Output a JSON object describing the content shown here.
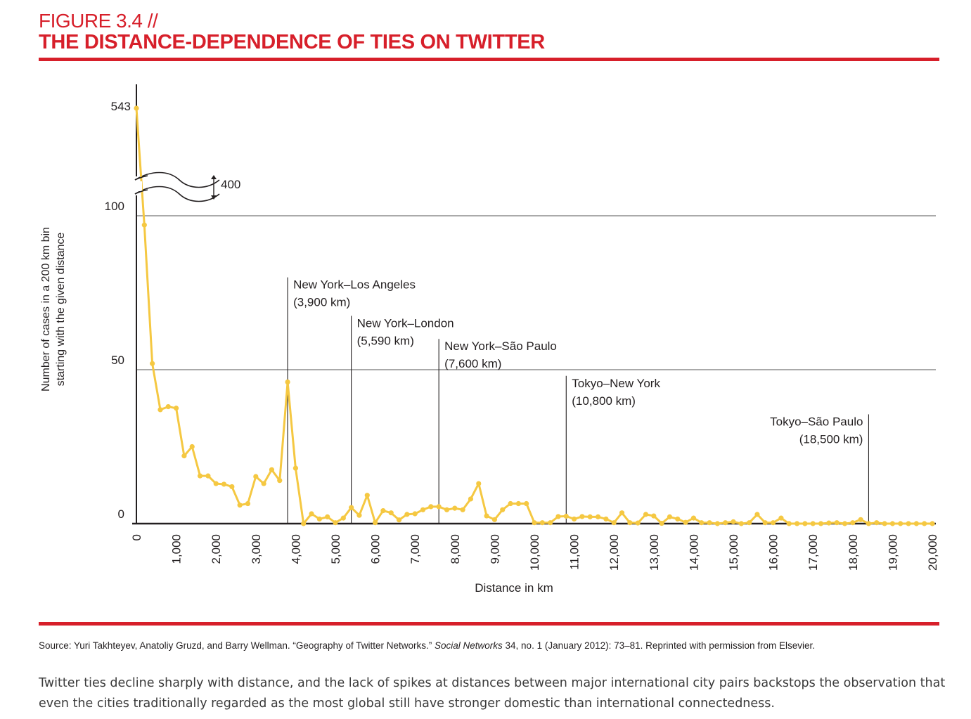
{
  "figure": {
    "label": "FIGURE 3.4 //",
    "title": "THE DISTANCE-DEPENDENCE OF TIES ON TWITTER",
    "source_prefix": "Source: Yuri Takhteyev, Anatoliy Gruzd, and Barry Wellman. “Geography of Twitter Networks.” ",
    "source_journal": "Social Networks",
    "source_suffix": " 34, no. 1 (January 2012): 73–81. Reprinted with permission from Elsevier.",
    "caption": "Twitter ties decline sharply with distance, and the lack of spikes at distances between major international city pairs backstops the observation that even the cities traditionally regarded as the most global still have stronger domestic than international connectedness."
  },
  "colors": {
    "accent": "#d71f2a",
    "line": "#f5c842",
    "grid": "#555555",
    "axis": "#231f20"
  },
  "chart_data": {
    "type": "line",
    "xlabel": "Distance in km",
    "ylabel_lines": [
      "Number of cases in a 200 km bin",
      "starting with the given distance"
    ],
    "xlim": [
      0,
      20000
    ],
    "ylim": [
      0,
      100
    ],
    "y_axis_break": {
      "lower_tick": "100",
      "top_tick": "543",
      "break_label": "400"
    },
    "ytick_labels": [
      "0",
      "50",
      "100"
    ],
    "xtick_labels": [
      "0",
      "1,000",
      "2,000",
      "3,000",
      "4,000",
      "5,000",
      "6,000",
      "7,000",
      "8,000",
      "9,000",
      "10,000",
      "11,000",
      "12,000",
      "13,000",
      "14,000",
      "15,000",
      "16,000",
      "17,000",
      "18,000",
      "19,000",
      "20,000"
    ],
    "grid": "horizontal at 50 and 100",
    "series": [
      {
        "x": [
          0,
          200,
          400,
          600,
          800,
          1000,
          1200,
          1400,
          1600,
          1800,
          2000,
          2200,
          2400,
          2600,
          2800,
          3000,
          3200,
          3400,
          3600,
          3800,
          4000,
          4200,
          4400,
          4600,
          4800,
          5000,
          5200,
          5400,
          5600,
          5800,
          6000,
          6200,
          6400,
          6600,
          6800,
          7000,
          7200,
          7400,
          7600,
          7800,
          8000,
          8200,
          8400,
          8600,
          8800,
          9000,
          9200,
          9400,
          9600,
          9800,
          10000,
          10200,
          10400,
          10600,
          10800,
          11000,
          11200,
          11400,
          11600,
          11800,
          12000,
          12200,
          12400,
          12600,
          12800,
          13000,
          13200,
          13400,
          13600,
          13800,
          14000,
          14200,
          14400,
          14600,
          14800,
          15000,
          15200,
          15400,
          15600,
          15800,
          16000,
          16200,
          16400,
          16600,
          16800,
          17000,
          17200,
          17400,
          17600,
          17800,
          18000,
          18200,
          18400,
          18600,
          18800,
          19000,
          19200,
          19400,
          19600,
          19800,
          20000
        ],
        "y": [
          543,
          97,
          52,
          37,
          38,
          37.5,
          22,
          25,
          15.5,
          15.5,
          13,
          12.8,
          12,
          6,
          6.5,
          15.3,
          13,
          17.5,
          14,
          46,
          18,
          0,
          3.2,
          1.5,
          2.2,
          0.3,
          1.8,
          5.2,
          2.7,
          9.2,
          0.3,
          4.2,
          3.5,
          1.2,
          3,
          3.2,
          4.5,
          5.5,
          5.5,
          4.5,
          5,
          4.5,
          8,
          13,
          2.5,
          1.3,
          4.5,
          6.5,
          6.5,
          6.5,
          0.3,
          0.3,
          0.3,
          2.3,
          2.4,
          1.5,
          2.3,
          2.2,
          2.2,
          1.5,
          0.3,
          3.5,
          0.3,
          0.2,
          3,
          2.5,
          0.1,
          2.2,
          1.5,
          0.4,
          1.8,
          0.3,
          0.3,
          0,
          0.3,
          0.6,
          0,
          0.3,
          3,
          0.3,
          0.3,
          1.8,
          0,
          0,
          0,
          0,
          0,
          0.2,
          0.3,
          0,
          0.3,
          1.3,
          0,
          0.3,
          0,
          0,
          0,
          0,
          0,
          0,
          0
        ]
      }
    ],
    "annotations": [
      {
        "x": 3800,
        "top_y": 80,
        "line1": "New York–Los Angeles",
        "line2": "(3,900 km)",
        "align": "right"
      },
      {
        "x": 5400,
        "top_y": 67.5,
        "line1": "New York–London",
        "line2": "(5,590 km)",
        "align": "right"
      },
      {
        "x": 7600,
        "top_y": 60,
        "line1": "New York–São Paulo",
        "line2": "(7,600 km)",
        "align": "right"
      },
      {
        "x": 10800,
        "top_y": 48,
        "line1": "Tokyo–New York",
        "line2": "(10,800 km)",
        "align": "right"
      },
      {
        "x": 18400,
        "top_y": 35.5,
        "line1": "Tokyo–São Paulo",
        "line2": "(18,500 km)",
        "align": "left"
      }
    ]
  }
}
